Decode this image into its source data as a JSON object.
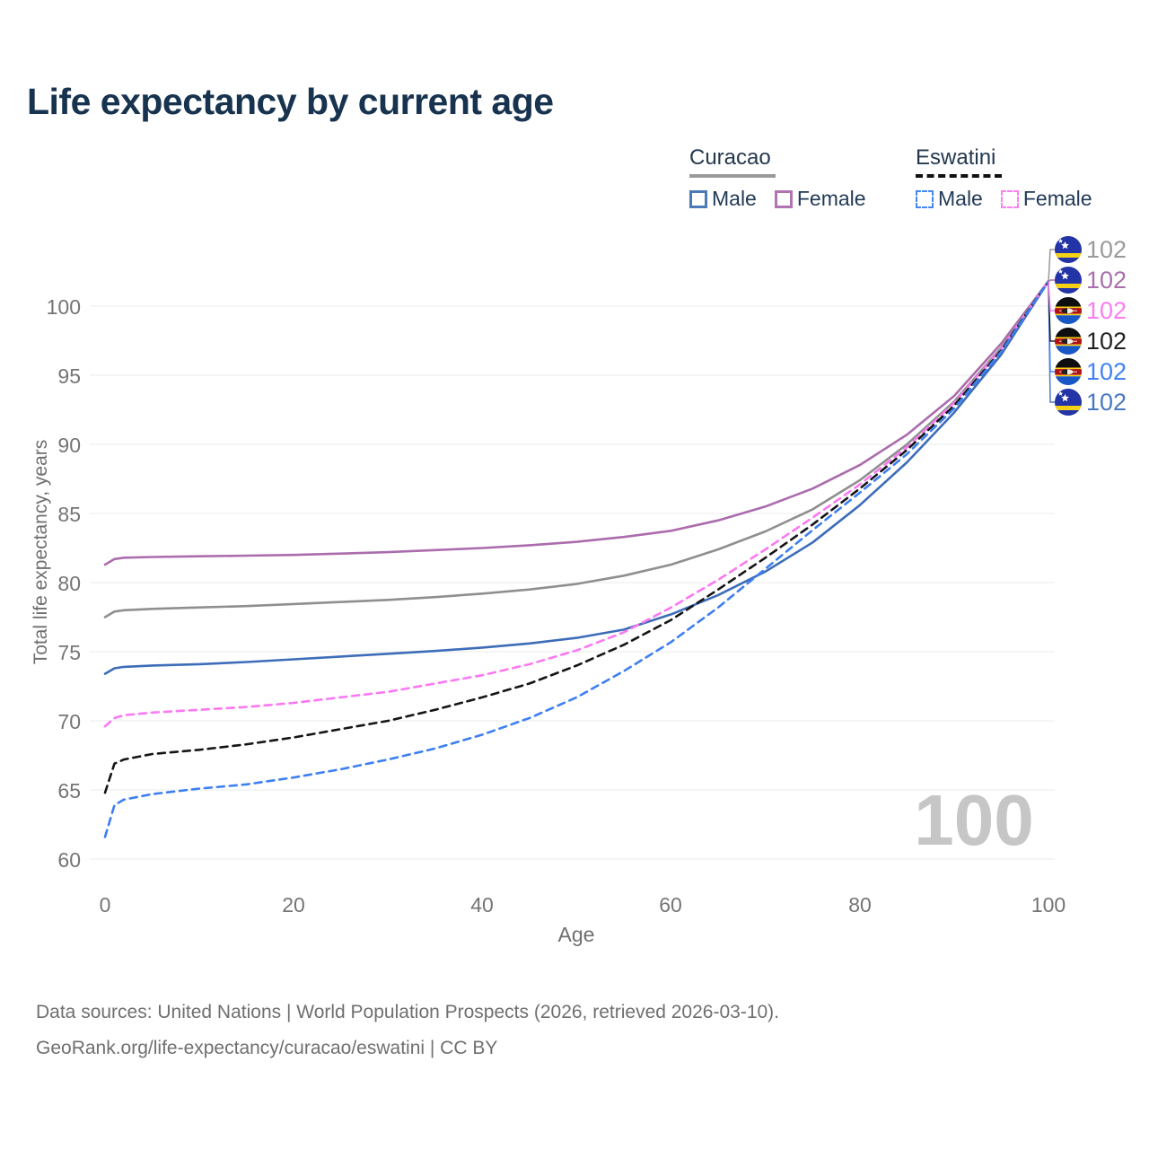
{
  "title": "Life expectancy by current age",
  "legend": {
    "groups": [
      {
        "name": "Curacao",
        "line_style": "solid",
        "items": [
          {
            "label": "Male"
          },
          {
            "label": "Female"
          }
        ]
      },
      {
        "name": "Eswatini",
        "line_style": "dashed",
        "items": [
          {
            "label": "Male"
          },
          {
            "label": "Female"
          }
        ]
      }
    ]
  },
  "watermark_age": "100",
  "footer": {
    "line1": "Data sources: United Nations | World Population Prospects (2026, retrieved 2026-03-10).",
    "line2": "GeoRank.org/life-expectancy/curacao/eswatini | CC BY"
  },
  "chart_data": {
    "type": "line",
    "title": "Life expectancy by current age",
    "xlabel": "Age",
    "ylabel": "Total life expectancy, years",
    "xlim": [
      0,
      100
    ],
    "ylim": [
      60,
      102
    ],
    "xticks": [
      "0",
      "20",
      "40",
      "60",
      "80",
      "100"
    ],
    "yticks": [
      "100",
      "95",
      "90",
      "85",
      "80",
      "75",
      "70",
      "65",
      "60"
    ],
    "ytick_values": [
      100,
      95,
      90,
      85,
      80,
      75,
      70,
      65,
      60
    ],
    "xtick_values": [
      0,
      20,
      40,
      60,
      80,
      100
    ],
    "grid": "horizontal",
    "legend_position": "top-right",
    "series": [
      {
        "id": "curacao-female",
        "country": "Curacao",
        "sex": "Female",
        "color": "#ab6cad",
        "dash": false,
        "end_value": "102",
        "points": [
          [
            0,
            81.3
          ],
          [
            1,
            81.7
          ],
          [
            2,
            81.8
          ],
          [
            5,
            81.85
          ],
          [
            10,
            81.9
          ],
          [
            15,
            81.95
          ],
          [
            20,
            82.0
          ],
          [
            25,
            82.1
          ],
          [
            30,
            82.2
          ],
          [
            35,
            82.35
          ],
          [
            40,
            82.5
          ],
          [
            45,
            82.7
          ],
          [
            50,
            82.95
          ],
          [
            55,
            83.3
          ],
          [
            60,
            83.75
          ],
          [
            65,
            84.5
          ],
          [
            70,
            85.5
          ],
          [
            75,
            86.8
          ],
          [
            80,
            88.5
          ],
          [
            85,
            90.7
          ],
          [
            90,
            93.5
          ],
          [
            95,
            97.3
          ],
          [
            100,
            101.8
          ]
        ]
      },
      {
        "id": "curacao-total",
        "country": "Curacao",
        "sex": "All",
        "color": "#8f8f8f",
        "dash": false,
        "end_value": "102",
        "points": [
          [
            0,
            77.5
          ],
          [
            1,
            77.9
          ],
          [
            2,
            78.0
          ],
          [
            5,
            78.1
          ],
          [
            10,
            78.2
          ],
          [
            15,
            78.3
          ],
          [
            20,
            78.45
          ],
          [
            25,
            78.6
          ],
          [
            30,
            78.75
          ],
          [
            35,
            78.95
          ],
          [
            40,
            79.2
          ],
          [
            45,
            79.5
          ],
          [
            50,
            79.9
          ],
          [
            55,
            80.5
          ],
          [
            60,
            81.3
          ],
          [
            65,
            82.4
          ],
          [
            70,
            83.7
          ],
          [
            75,
            85.3
          ],
          [
            80,
            87.4
          ],
          [
            85,
            90.0
          ],
          [
            90,
            93.1
          ],
          [
            95,
            97.0
          ],
          [
            100,
            101.8
          ]
        ]
      },
      {
        "id": "curacao-male",
        "country": "Curacao",
        "sex": "Male",
        "color": "#3d6db8",
        "dash": false,
        "end_value": "102",
        "points": [
          [
            0,
            73.4
          ],
          [
            1,
            73.8
          ],
          [
            2,
            73.9
          ],
          [
            5,
            74.0
          ],
          [
            10,
            74.1
          ],
          [
            15,
            74.25
          ],
          [
            20,
            74.45
          ],
          [
            25,
            74.65
          ],
          [
            30,
            74.85
          ],
          [
            35,
            75.05
          ],
          [
            40,
            75.3
          ],
          [
            45,
            75.6
          ],
          [
            50,
            76.0
          ],
          [
            55,
            76.6
          ],
          [
            60,
            77.7
          ],
          [
            65,
            79.1
          ],
          [
            70,
            80.8
          ],
          [
            75,
            82.9
          ],
          [
            80,
            85.6
          ],
          [
            85,
            88.7
          ],
          [
            90,
            92.3
          ],
          [
            95,
            96.5
          ],
          [
            100,
            101.8
          ]
        ]
      },
      {
        "id": "eswatini-female",
        "country": "Eswatini",
        "sex": "Female",
        "color": "#fb78f2",
        "dash": true,
        "end_value": "102",
        "points": [
          [
            0,
            69.6
          ],
          [
            1,
            70.2
          ],
          [
            2,
            70.4
          ],
          [
            5,
            70.6
          ],
          [
            10,
            70.8
          ],
          [
            15,
            71.0
          ],
          [
            20,
            71.3
          ],
          [
            25,
            71.7
          ],
          [
            30,
            72.1
          ],
          [
            35,
            72.7
          ],
          [
            40,
            73.3
          ],
          [
            45,
            74.1
          ],
          [
            50,
            75.1
          ],
          [
            55,
            76.4
          ],
          [
            60,
            78.2
          ],
          [
            65,
            80.2
          ],
          [
            70,
            82.4
          ],
          [
            75,
            84.7
          ],
          [
            80,
            87.1
          ],
          [
            85,
            89.8
          ],
          [
            90,
            93.0
          ],
          [
            95,
            96.9
          ],
          [
            100,
            101.8
          ]
        ]
      },
      {
        "id": "eswatini-total",
        "country": "Eswatini",
        "sex": "All",
        "color": "#151515",
        "dash": true,
        "end_value": "102",
        "points": [
          [
            0,
            64.8
          ],
          [
            1,
            66.9
          ],
          [
            2,
            67.2
          ],
          [
            5,
            67.6
          ],
          [
            10,
            67.9
          ],
          [
            15,
            68.3
          ],
          [
            20,
            68.8
          ],
          [
            25,
            69.4
          ],
          [
            30,
            70.0
          ],
          [
            35,
            70.8
          ],
          [
            40,
            71.7
          ],
          [
            45,
            72.7
          ],
          [
            50,
            74.0
          ],
          [
            55,
            75.5
          ],
          [
            60,
            77.3
          ],
          [
            65,
            79.5
          ],
          [
            70,
            81.8
          ],
          [
            75,
            84.2
          ],
          [
            80,
            86.8
          ],
          [
            85,
            89.6
          ],
          [
            90,
            92.8
          ],
          [
            95,
            96.8
          ],
          [
            100,
            101.8
          ]
        ]
      },
      {
        "id": "eswatini-male",
        "country": "Eswatini",
        "sex": "Male",
        "color": "#3d7ff2",
        "dash": true,
        "end_value": "102",
        "points": [
          [
            0,
            61.6
          ],
          [
            1,
            63.9
          ],
          [
            2,
            64.3
          ],
          [
            5,
            64.7
          ],
          [
            10,
            65.1
          ],
          [
            15,
            65.4
          ],
          [
            20,
            65.9
          ],
          [
            25,
            66.5
          ],
          [
            30,
            67.2
          ],
          [
            35,
            68.0
          ],
          [
            40,
            69.0
          ],
          [
            45,
            70.2
          ],
          [
            50,
            71.7
          ],
          [
            55,
            73.6
          ],
          [
            60,
            75.7
          ],
          [
            65,
            78.2
          ],
          [
            70,
            81.0
          ],
          [
            75,
            83.8
          ],
          [
            80,
            86.5
          ],
          [
            85,
            89.3
          ],
          [
            90,
            92.6
          ],
          [
            95,
            96.7
          ],
          [
            100,
            101.8
          ]
        ]
      }
    ],
    "end_labels": [
      {
        "flag": "curacao",
        "series": "curacao-total",
        "value": "102",
        "color": "#9a9a9a"
      },
      {
        "flag": "curacao",
        "series": "curacao-female",
        "value": "102",
        "color": "#a96fac"
      },
      {
        "flag": "eswatini",
        "series": "eswatini-female",
        "value": "102",
        "color": "#fb7df2"
      },
      {
        "flag": "eswatini",
        "series": "eswatini-total",
        "value": "102",
        "color": "#222222"
      },
      {
        "flag": "eswatini",
        "series": "eswatini-male",
        "value": "102",
        "color": "#4182f2"
      },
      {
        "flag": "curacao",
        "series": "curacao-male",
        "value": "102",
        "color": "#4a78c2"
      }
    ]
  }
}
